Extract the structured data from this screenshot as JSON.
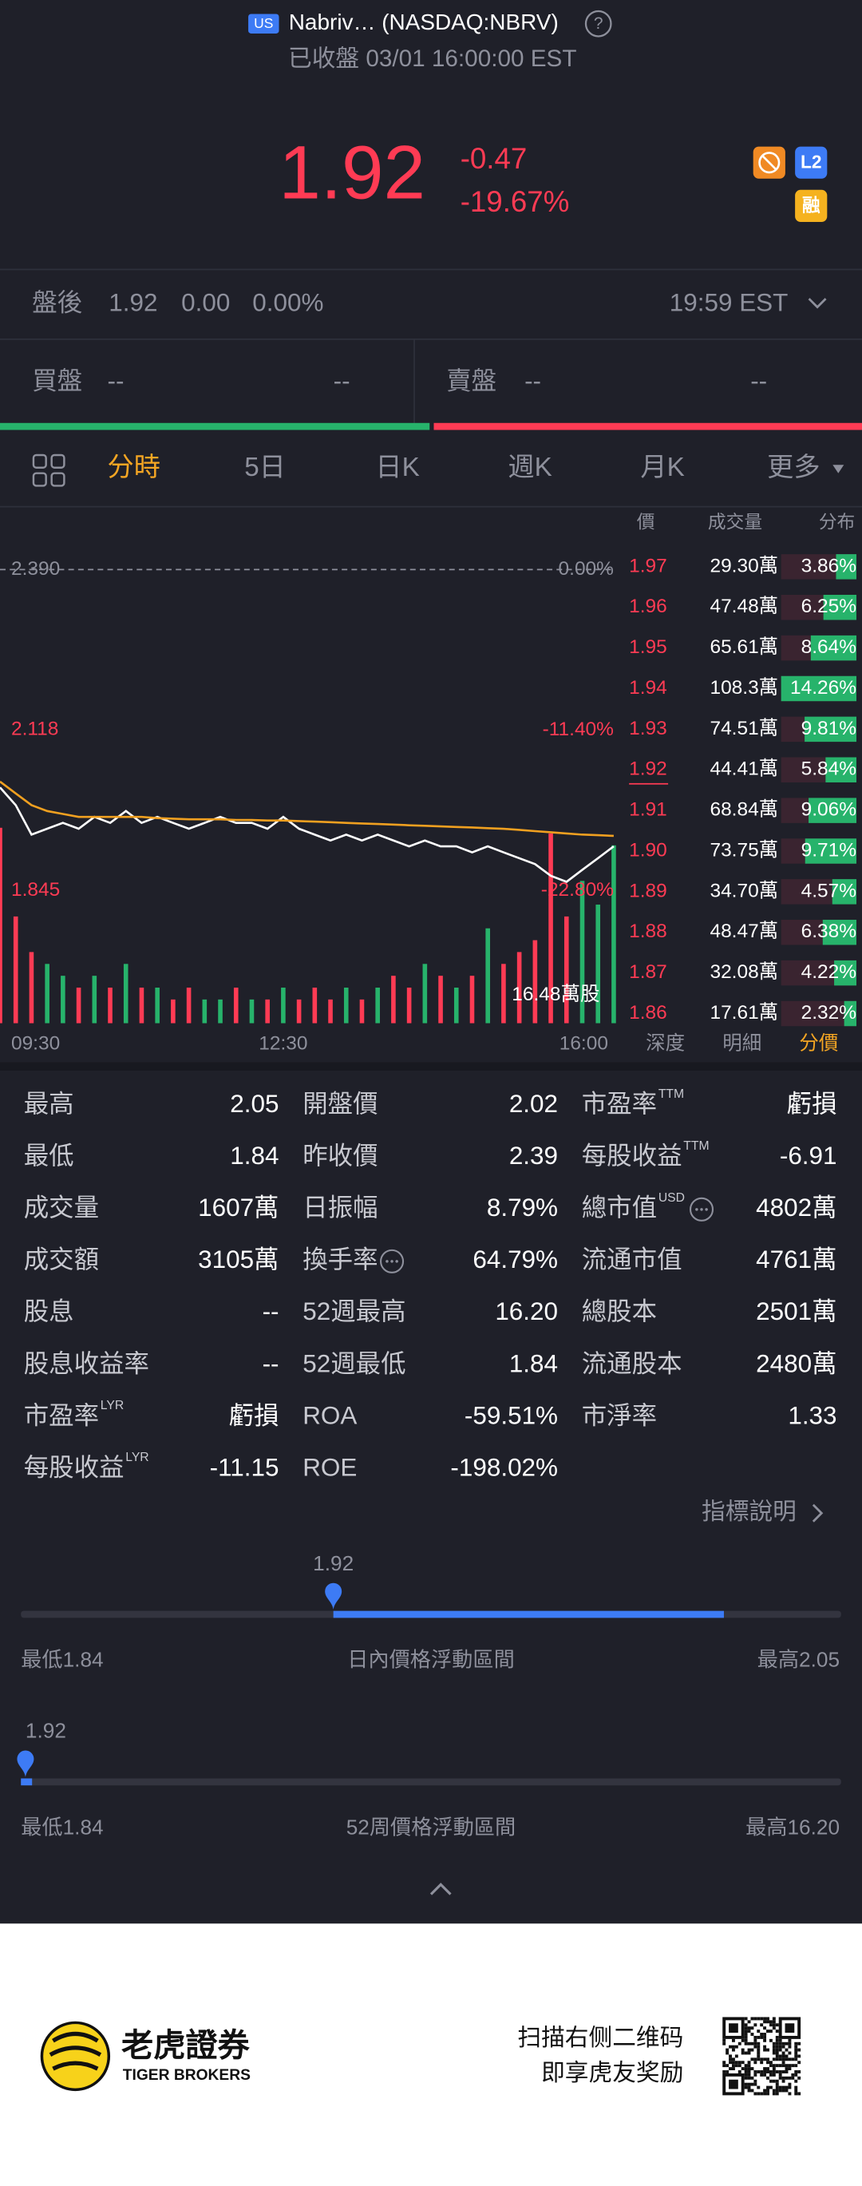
{
  "header": {
    "market": "US",
    "name": "Nabriv… (NASDAQ:NBRV)",
    "status": "已收盤 03/01 16:00:00 EST"
  },
  "quote": {
    "price": "1.92",
    "change": "-0.47",
    "change_pct": "-19.67%",
    "badge_l2": "L2",
    "badge_margin": "融"
  },
  "after_hours": {
    "label": "盤後",
    "price": "1.92",
    "change": "0.00",
    "change_pct": "0.00%",
    "time": "19:59 EST"
  },
  "book": {
    "bid_label": "買盤",
    "bid_price": "--",
    "bid_size": "--",
    "ask_label": "賣盤",
    "ask_price": "--",
    "ask_size": "--"
  },
  "tabs": [
    "分時",
    "5日",
    "日K",
    "週K",
    "月K",
    "更多"
  ],
  "active_tab": 0,
  "chart_data": {
    "type": "line",
    "categories": [
      "09:30",
      null,
      null,
      null,
      null,
      null,
      null,
      null,
      null,
      null,
      null,
      null,
      null,
      null,
      null,
      null,
      null,
      null,
      "12:30",
      null,
      null,
      null,
      null,
      null,
      null,
      null,
      null,
      null,
      null,
      null,
      null,
      null,
      null,
      null,
      null,
      null,
      null,
      null,
      null,
      "16:00"
    ],
    "series": [
      {
        "color": "#ffffff",
        "values": [
          2.02,
          1.99,
          1.94,
          1.95,
          1.96,
          1.95,
          1.97,
          1.96,
          1.98,
          1.96,
          1.97,
          1.96,
          1.95,
          1.96,
          1.97,
          1.96,
          1.96,
          1.95,
          1.97,
          1.95,
          1.94,
          1.93,
          1.94,
          1.93,
          1.94,
          1.93,
          1.92,
          1.93,
          1.92,
          1.92,
          1.91,
          1.92,
          1.91,
          1.9,
          1.89,
          1.87,
          1.86,
          1.88,
          1.9,
          1.92
        ]
      },
      {
        "color": "#f0a020",
        "values": [
          2.03,
          2.01,
          1.99,
          1.98,
          1.975,
          1.97,
          1.97,
          1.97,
          1.97,
          1.97,
          1.968,
          1.967,
          1.966,
          1.966,
          1.966,
          1.965,
          1.965,
          1.964,
          1.964,
          1.963,
          1.962,
          1.961,
          1.96,
          1.959,
          1.958,
          1.957,
          1.956,
          1.955,
          1.954,
          1.953,
          1.952,
          1.951,
          1.95,
          1.948,
          1.946,
          1.944,
          1.942,
          1.94,
          1.939,
          1.938
        ]
      }
    ],
    "volume": [
      16.48,
      9,
      6,
      5,
      4,
      3,
      4,
      3,
      5,
      3,
      3,
      2,
      3,
      2,
      2,
      3,
      2,
      2,
      3,
      2,
      3,
      2,
      3,
      2,
      3,
      4,
      3,
      5,
      4,
      3,
      4,
      8,
      5,
      6,
      7,
      16,
      9,
      12,
      10,
      15
    ],
    "volume_axis": {
      "value": 16.48,
      "label": "16.48萬股"
    },
    "ylim": [
      1.845,
      2.39
    ],
    "yticks": [
      {
        "value": 2.39,
        "label": "2.390"
      },
      {
        "value": 2.118,
        "label": "2.118"
      },
      {
        "value": 1.845,
        "label": "1.845"
      }
    ],
    "y2lim": [
      -22.8,
      0
    ],
    "y2ticks": [
      {
        "value": 0,
        "label": "0.00%"
      },
      {
        "value": -11.4,
        "label": "-11.40%"
      },
      {
        "value": -22.8,
        "label": "-22.80%"
      }
    ],
    "up_color": "#27b36b",
    "down_color": "#ff3b54"
  },
  "depth": {
    "headers": [
      "價",
      "成交量",
      "分布"
    ],
    "tabs": [
      "深度",
      "明細",
      "分價"
    ],
    "active_tab": 2,
    "rows": [
      {
        "price": "1.97",
        "volume": "29.30萬",
        "pct": 3.86,
        "pct_label": "3.86%"
      },
      {
        "price": "1.96",
        "volume": "47.48萬",
        "pct": 6.25,
        "pct_label": "6.25%"
      },
      {
        "price": "1.95",
        "volume": "65.61萬",
        "pct": 8.64,
        "pct_label": "8.64%"
      },
      {
        "price": "1.94",
        "volume": "108.3萬",
        "pct": 14.26,
        "pct_label": "14.26%"
      },
      {
        "price": "1.93",
        "volume": "74.51萬",
        "pct": 9.81,
        "pct_label": "9.81%"
      },
      {
        "price": "1.92",
        "volume": "44.41萬",
        "pct": 5.84,
        "pct_label": "5.84%"
      },
      {
        "price": "1.91",
        "volume": "68.84萬",
        "pct": 9.06,
        "pct_label": "9.06%"
      },
      {
        "price": "1.90",
        "volume": "73.75萬",
        "pct": 9.71,
        "pct_label": "9.71%"
      },
      {
        "price": "1.89",
        "volume": "34.70萬",
        "pct": 4.57,
        "pct_label": "4.57%"
      },
      {
        "price": "1.88",
        "volume": "48.47萬",
        "pct": 6.38,
        "pct_label": "6.38%"
      },
      {
        "price": "1.87",
        "volume": "32.08萬",
        "pct": 4.22,
        "pct_label": "4.22%"
      },
      {
        "price": "1.86",
        "volume": "17.61萬",
        "pct": 2.32,
        "pct_label": "2.32%"
      }
    ]
  },
  "stats": [
    {
      "label": "最高",
      "value": "2.05"
    },
    {
      "label": "開盤價",
      "value": "2.02"
    },
    {
      "label": "市盈率",
      "sup": "TTM",
      "value": "虧損"
    },
    {
      "label": "最低",
      "value": "1.84"
    },
    {
      "label": "昨收價",
      "value": "2.39"
    },
    {
      "label": "每股收益",
      "sup": "TTM",
      "value": "-6.91"
    },
    {
      "label": "成交量",
      "value": "1607萬"
    },
    {
      "label": "日振幅",
      "value": "8.79%"
    },
    {
      "label": "總市值",
      "sup": "USD",
      "info": true,
      "value": "4802萬"
    },
    {
      "label": "成交額",
      "value": "3105萬"
    },
    {
      "label": "換手率",
      "info": true,
      "value": "64.79%"
    },
    {
      "label": "流通市值",
      "value": "4761萬"
    },
    {
      "label": "股息",
      "value": "--"
    },
    {
      "label": "52週最高",
      "value": "16.20"
    },
    {
      "label": "總股本",
      "value": "2501萬"
    },
    {
      "label": "股息收益率",
      "value": "--"
    },
    {
      "label": "52週最低",
      "value": "1.84"
    },
    {
      "label": "流通股本",
      "value": "2480萬"
    },
    {
      "label": "市盈率",
      "sup": "LYR",
      "value": "虧損"
    },
    {
      "label": "ROA",
      "value": "-59.51%"
    },
    {
      "label": "市淨率",
      "value": "1.33"
    },
    {
      "label": "每股收益",
      "sup": "LYR",
      "value": "-11.15"
    },
    {
      "label": "ROE",
      "value": "-198.02%"
    }
  ],
  "indicator_link": "指標說明",
  "ranges": [
    {
      "current": 1.92,
      "low": 1.84,
      "high": 2.05,
      "open": 2.02,
      "low_label": "最低1.84",
      "title": "日內價格浮動區間",
      "high_label": "最高2.05"
    },
    {
      "current": 1.92,
      "low": 1.84,
      "high": 16.2,
      "low_label": "最低1.84",
      "title": "52周價格浮動區間",
      "high_label": "最高16.20"
    }
  ],
  "footer": {
    "brand": "老虎證券",
    "brand_en": "TIGER BROKERS",
    "promo": [
      "扫描右侧二维码",
      "即享虎友奖励"
    ]
  }
}
